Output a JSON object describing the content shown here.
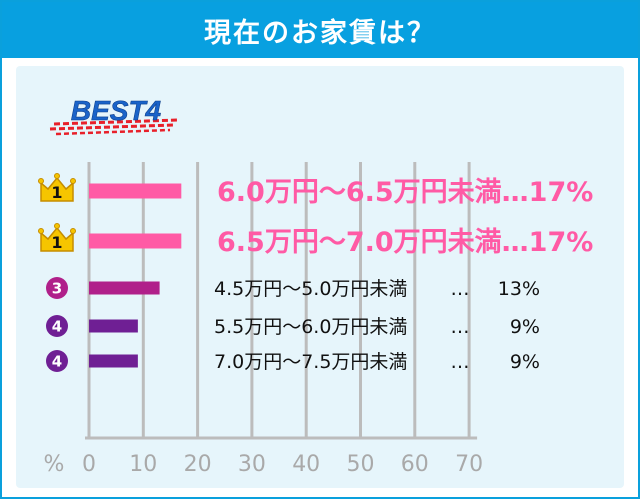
{
  "header": {
    "title": "現在のお家賃は？"
  },
  "badge": {
    "text": "BEST4"
  },
  "colors": {
    "header": "#08a0e0",
    "panel": "#e6f5fb",
    "pink": "#ff5aa5",
    "purple": "#7a1d8c",
    "gold": "#f6c500",
    "stripe": "#e8202a"
  },
  "chart_data": {
    "type": "bar",
    "orientation": "horizontal",
    "unit_label": "%",
    "xlim": [
      0,
      70
    ],
    "x_ticks": [
      "0",
      "10",
      "20",
      "30",
      "40",
      "50",
      "60",
      "70"
    ],
    "grid": true,
    "rows": [
      {
        "rank": "1",
        "label": "6.0万円～6.5万円未満",
        "sep": "…",
        "pct": "17%",
        "value": 17,
        "emphasis": true,
        "color": "#ff5aa5",
        "marker": "crown-icon"
      },
      {
        "rank": "1",
        "label": "6.5万円～7.0万円未満",
        "sep": "…",
        "pct": "17%",
        "value": 17,
        "emphasis": true,
        "color": "#ff5aa5",
        "marker": "crown-icon"
      },
      {
        "rank": "3",
        "label": "4.5万円～5.0万円未満",
        "sep": "…",
        "pct": "13%",
        "value": 13,
        "emphasis": false,
        "color": "#b0208a",
        "marker": "rank-circle-icon"
      },
      {
        "rank": "4",
        "label": "5.5万円～6.0万円未満",
        "sep": "…",
        "pct": "9%",
        "value": 9,
        "emphasis": false,
        "color": "#6f1f94",
        "marker": "rank-circle-icon"
      },
      {
        "rank": "4",
        "label": "7.0万円～7.5万円未満",
        "sep": "…",
        "pct": "9%",
        "value": 9,
        "emphasis": false,
        "color": "#6f1f94",
        "marker": "rank-circle-icon"
      }
    ]
  }
}
